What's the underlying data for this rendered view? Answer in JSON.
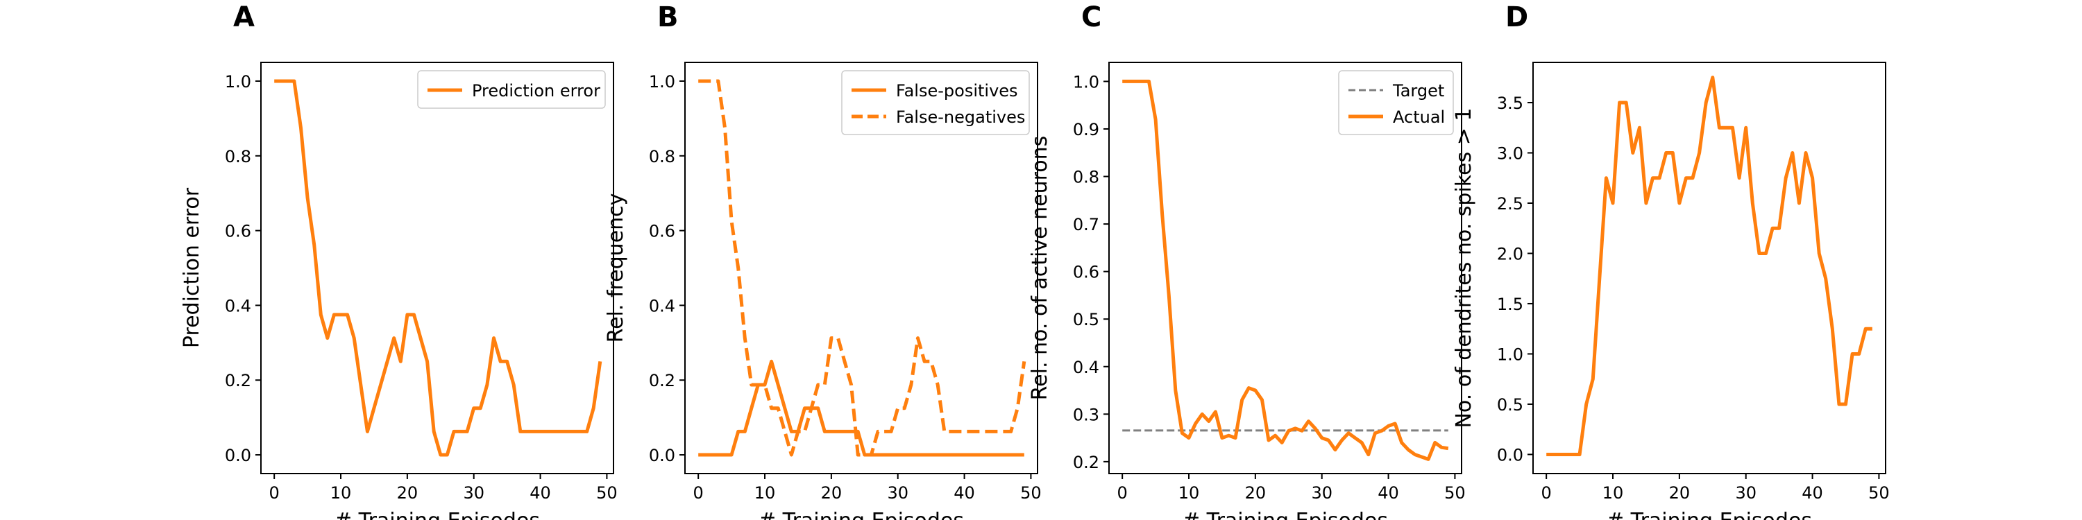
{
  "figure": {
    "background": "#ffffff",
    "series_color": "#ff7f0e",
    "target_color": "#808080"
  },
  "chart_data": [
    {
      "type": "line",
      "panel": "A",
      "title": "",
      "xlabel": "# Training Episodes",
      "ylabel": "Prediction error",
      "xlim": [
        -2,
        51
      ],
      "ylim": [
        -0.05,
        1.05
      ],
      "xticks": [
        0,
        10,
        20,
        30,
        40,
        50
      ],
      "yticks": [
        "0.0",
        "0.2",
        "0.4",
        "0.6",
        "0.8",
        "1.0"
      ],
      "legend_position": "top-right",
      "grid": false,
      "series": [
        {
          "name": "Prediction error",
          "style": "solid",
          "color": "#ff7f0e",
          "x": [
            0,
            1,
            2,
            3,
            4,
            5,
            6,
            7,
            8,
            9,
            10,
            11,
            12,
            13,
            14,
            15,
            16,
            17,
            18,
            19,
            20,
            21,
            22,
            23,
            24,
            25,
            26,
            27,
            28,
            29,
            30,
            31,
            32,
            33,
            34,
            35,
            36,
            37,
            38,
            39,
            40,
            41,
            42,
            43,
            44,
            45,
            46,
            47,
            48,
            49
          ],
          "y": [
            1.0,
            1.0,
            1.0,
            1.0,
            0.875,
            0.6875,
            0.5625,
            0.375,
            0.3125,
            0.375,
            0.375,
            0.375,
            0.3125,
            0.1875,
            0.0625,
            0.125,
            0.1875,
            0.25,
            0.3125,
            0.25,
            0.375,
            0.375,
            0.3125,
            0.25,
            0.0625,
            0.0,
            0.0,
            0.0625,
            0.0625,
            0.0625,
            0.125,
            0.125,
            0.1875,
            0.3125,
            0.25,
            0.25,
            0.1875,
            0.0625,
            0.0625,
            0.0625,
            0.0625,
            0.0625,
            0.0625,
            0.0625,
            0.0625,
            0.0625,
            0.0625,
            0.0625,
            0.125,
            0.25
          ]
        }
      ]
    },
    {
      "type": "line",
      "panel": "B",
      "title": "",
      "xlabel": "# Training Episodes",
      "ylabel": "Rel. frequency",
      "xlim": [
        -2,
        51
      ],
      "ylim": [
        -0.05,
        1.05
      ],
      "xticks": [
        0,
        10,
        20,
        30,
        40,
        50
      ],
      "yticks": [
        "0.0",
        "0.2",
        "0.4",
        "0.6",
        "0.8",
        "1.0"
      ],
      "legend_position": "top-right",
      "grid": false,
      "series": [
        {
          "name": "False-positives",
          "style": "solid",
          "color": "#ff7f0e",
          "x": [
            0,
            1,
            2,
            3,
            4,
            5,
            6,
            7,
            8,
            9,
            10,
            11,
            12,
            13,
            14,
            15,
            16,
            17,
            18,
            19,
            20,
            21,
            22,
            23,
            24,
            25,
            26,
            27,
            28,
            29,
            30,
            31,
            32,
            33,
            34,
            35,
            36,
            37,
            38,
            39,
            40,
            41,
            42,
            43,
            44,
            45,
            46,
            47,
            48,
            49
          ],
          "y": [
            0,
            0,
            0,
            0,
            0,
            0,
            0.0625,
            0.0625,
            0.125,
            0.1875,
            0.1875,
            0.25,
            0.1875,
            0.125,
            0.0625,
            0.0625,
            0.125,
            0.125,
            0.125,
            0.0625,
            0.0625,
            0.0625,
            0.0625,
            0.0625,
            0.0625,
            0,
            0,
            0,
            0,
            0,
            0,
            0,
            0,
            0,
            0,
            0,
            0,
            0,
            0,
            0,
            0,
            0,
            0,
            0,
            0,
            0,
            0,
            0,
            0,
            0
          ]
        },
        {
          "name": "False-negatives",
          "style": "dashed",
          "color": "#ff7f0e",
          "x": [
            0,
            1,
            2,
            3,
            4,
            5,
            6,
            7,
            8,
            9,
            10,
            11,
            12,
            13,
            14,
            15,
            16,
            17,
            18,
            19,
            20,
            21,
            22,
            23,
            24,
            25,
            26,
            27,
            28,
            29,
            30,
            31,
            32,
            33,
            34,
            35,
            36,
            37,
            38,
            39,
            40,
            41,
            42,
            43,
            44,
            45,
            46,
            47,
            48,
            49
          ],
          "y": [
            1.0,
            1.0,
            1.0,
            1.0,
            0.875,
            0.625,
            0.5,
            0.3125,
            0.1875,
            0.1875,
            0.1875,
            0.125,
            0.125,
            0.0625,
            0,
            0.0625,
            0.0625,
            0.125,
            0.1875,
            0.1875,
            0.3125,
            0.3125,
            0.25,
            0.1875,
            0,
            0,
            0,
            0.0625,
            0.0625,
            0.0625,
            0.125,
            0.125,
            0.1875,
            0.3125,
            0.25,
            0.25,
            0.1875,
            0.0625,
            0.0625,
            0.0625,
            0.0625,
            0.0625,
            0.0625,
            0.0625,
            0.0625,
            0.0625,
            0.0625,
            0.0625,
            0.125,
            0.25
          ]
        }
      ]
    },
    {
      "type": "line",
      "panel": "C",
      "title": "",
      "xlabel": "# Training Episodes",
      "ylabel": "Rel. no. of active neurons",
      "xlim": [
        -2,
        51
      ],
      "ylim": [
        0.175,
        1.04
      ],
      "xticks": [
        0,
        10,
        20,
        30,
        40,
        50
      ],
      "yticks": [
        "0.2",
        "0.3",
        "0.4",
        "0.5",
        "0.6",
        "0.7",
        "0.8",
        "0.9",
        "1.0"
      ],
      "legend_position": "top-right",
      "grid": false,
      "series": [
        {
          "name": "Target",
          "style": "dashed",
          "color": "#808080",
          "x": [
            0,
            49
          ],
          "y": [
            0.2656,
            0.2656
          ]
        },
        {
          "name": "Actual",
          "style": "solid",
          "color": "#ff7f0e",
          "x": [
            0,
            1,
            2,
            3,
            4,
            5,
            6,
            7,
            8,
            9,
            10,
            11,
            12,
            13,
            14,
            15,
            16,
            17,
            18,
            19,
            20,
            21,
            22,
            23,
            24,
            25,
            26,
            27,
            28,
            29,
            30,
            31,
            32,
            33,
            34,
            35,
            36,
            37,
            38,
            39,
            40,
            41,
            42,
            43,
            44,
            45,
            46,
            47,
            48,
            49
          ],
          "y": [
            1.0,
            1.0,
            1.0,
            1.0,
            1.0,
            0.92,
            0.72,
            0.55,
            0.35,
            0.26,
            0.25,
            0.28,
            0.3,
            0.285,
            0.305,
            0.25,
            0.255,
            0.25,
            0.33,
            0.355,
            0.35,
            0.33,
            0.245,
            0.255,
            0.24,
            0.265,
            0.27,
            0.265,
            0.285,
            0.27,
            0.25,
            0.245,
            0.225,
            0.245,
            0.26,
            0.25,
            0.24,
            0.215,
            0.26,
            0.265,
            0.275,
            0.28,
            0.24,
            0.225,
            0.215,
            0.21,
            0.205,
            0.24,
            0.23,
            0.228
          ]
        }
      ]
    },
    {
      "type": "line",
      "panel": "D",
      "title": "",
      "xlabel": "# Training Episodes",
      "ylabel": "No. of dendrites no. spikes > 1",
      "xlim": [
        -2,
        51
      ],
      "ylim": [
        -0.19,
        3.9
      ],
      "xticks": [
        0,
        10,
        20,
        30,
        40,
        50
      ],
      "yticks": [
        "0.0",
        "0.5",
        "1.0",
        "1.5",
        "2.0",
        "2.5",
        "3.0",
        "3.5"
      ],
      "legend_position": "none",
      "grid": false,
      "series": [
        {
          "style": "solid",
          "color": "#ff7f0e",
          "x": [
            0,
            1,
            2,
            3,
            4,
            5,
            6,
            7,
            8,
            9,
            10,
            11,
            12,
            13,
            14,
            15,
            16,
            17,
            18,
            19,
            20,
            21,
            22,
            23,
            24,
            25,
            26,
            27,
            28,
            29,
            30,
            31,
            32,
            33,
            34,
            35,
            36,
            37,
            38,
            39,
            40,
            41,
            42,
            43,
            44,
            45,
            46,
            47,
            48,
            49
          ],
          "y": [
            0,
            0,
            0,
            0,
            0,
            0,
            0.5,
            0.75,
            1.75,
            2.75,
            2.5,
            3.5,
            3.5,
            3.0,
            3.25,
            2.5,
            2.75,
            2.75,
            3.0,
            3.0,
            2.5,
            2.75,
            2.75,
            3.0,
            3.5,
            3.75,
            3.25,
            3.25,
            3.25,
            2.75,
            3.25,
            2.5,
            2.0,
            2.0,
            2.25,
            2.25,
            2.75,
            3.0,
            2.5,
            3.0,
            2.75,
            2.0,
            1.75,
            1.25,
            0.5,
            0.5,
            1.0,
            1.0,
            1.25,
            1.25
          ]
        }
      ]
    }
  ]
}
